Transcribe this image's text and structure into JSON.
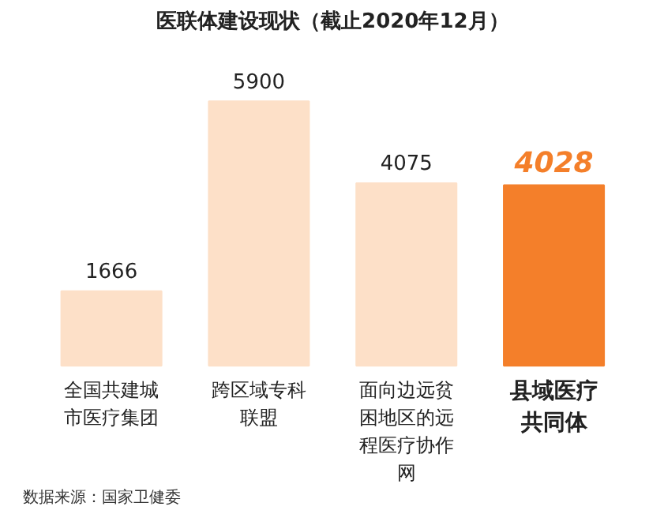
{
  "chart_data": {
    "type": "bar",
    "title": "医联体建设现状（截止2020年12月）",
    "categories": [
      "全国共建城市医疗集团",
      "跨区域专科联盟",
      "面向边远贫困地区的远程医疗协作网",
      "县域医疗共同体"
    ],
    "values": [
      1666,
      5900,
      4075,
      4028
    ],
    "colors": [
      "#fde0c8",
      "#fde0c8",
      "#fde0c8",
      "#f47f2a"
    ],
    "data_labels": true,
    "annotations": [
      "数据来源：国家卫健委"
    ]
  }
}
